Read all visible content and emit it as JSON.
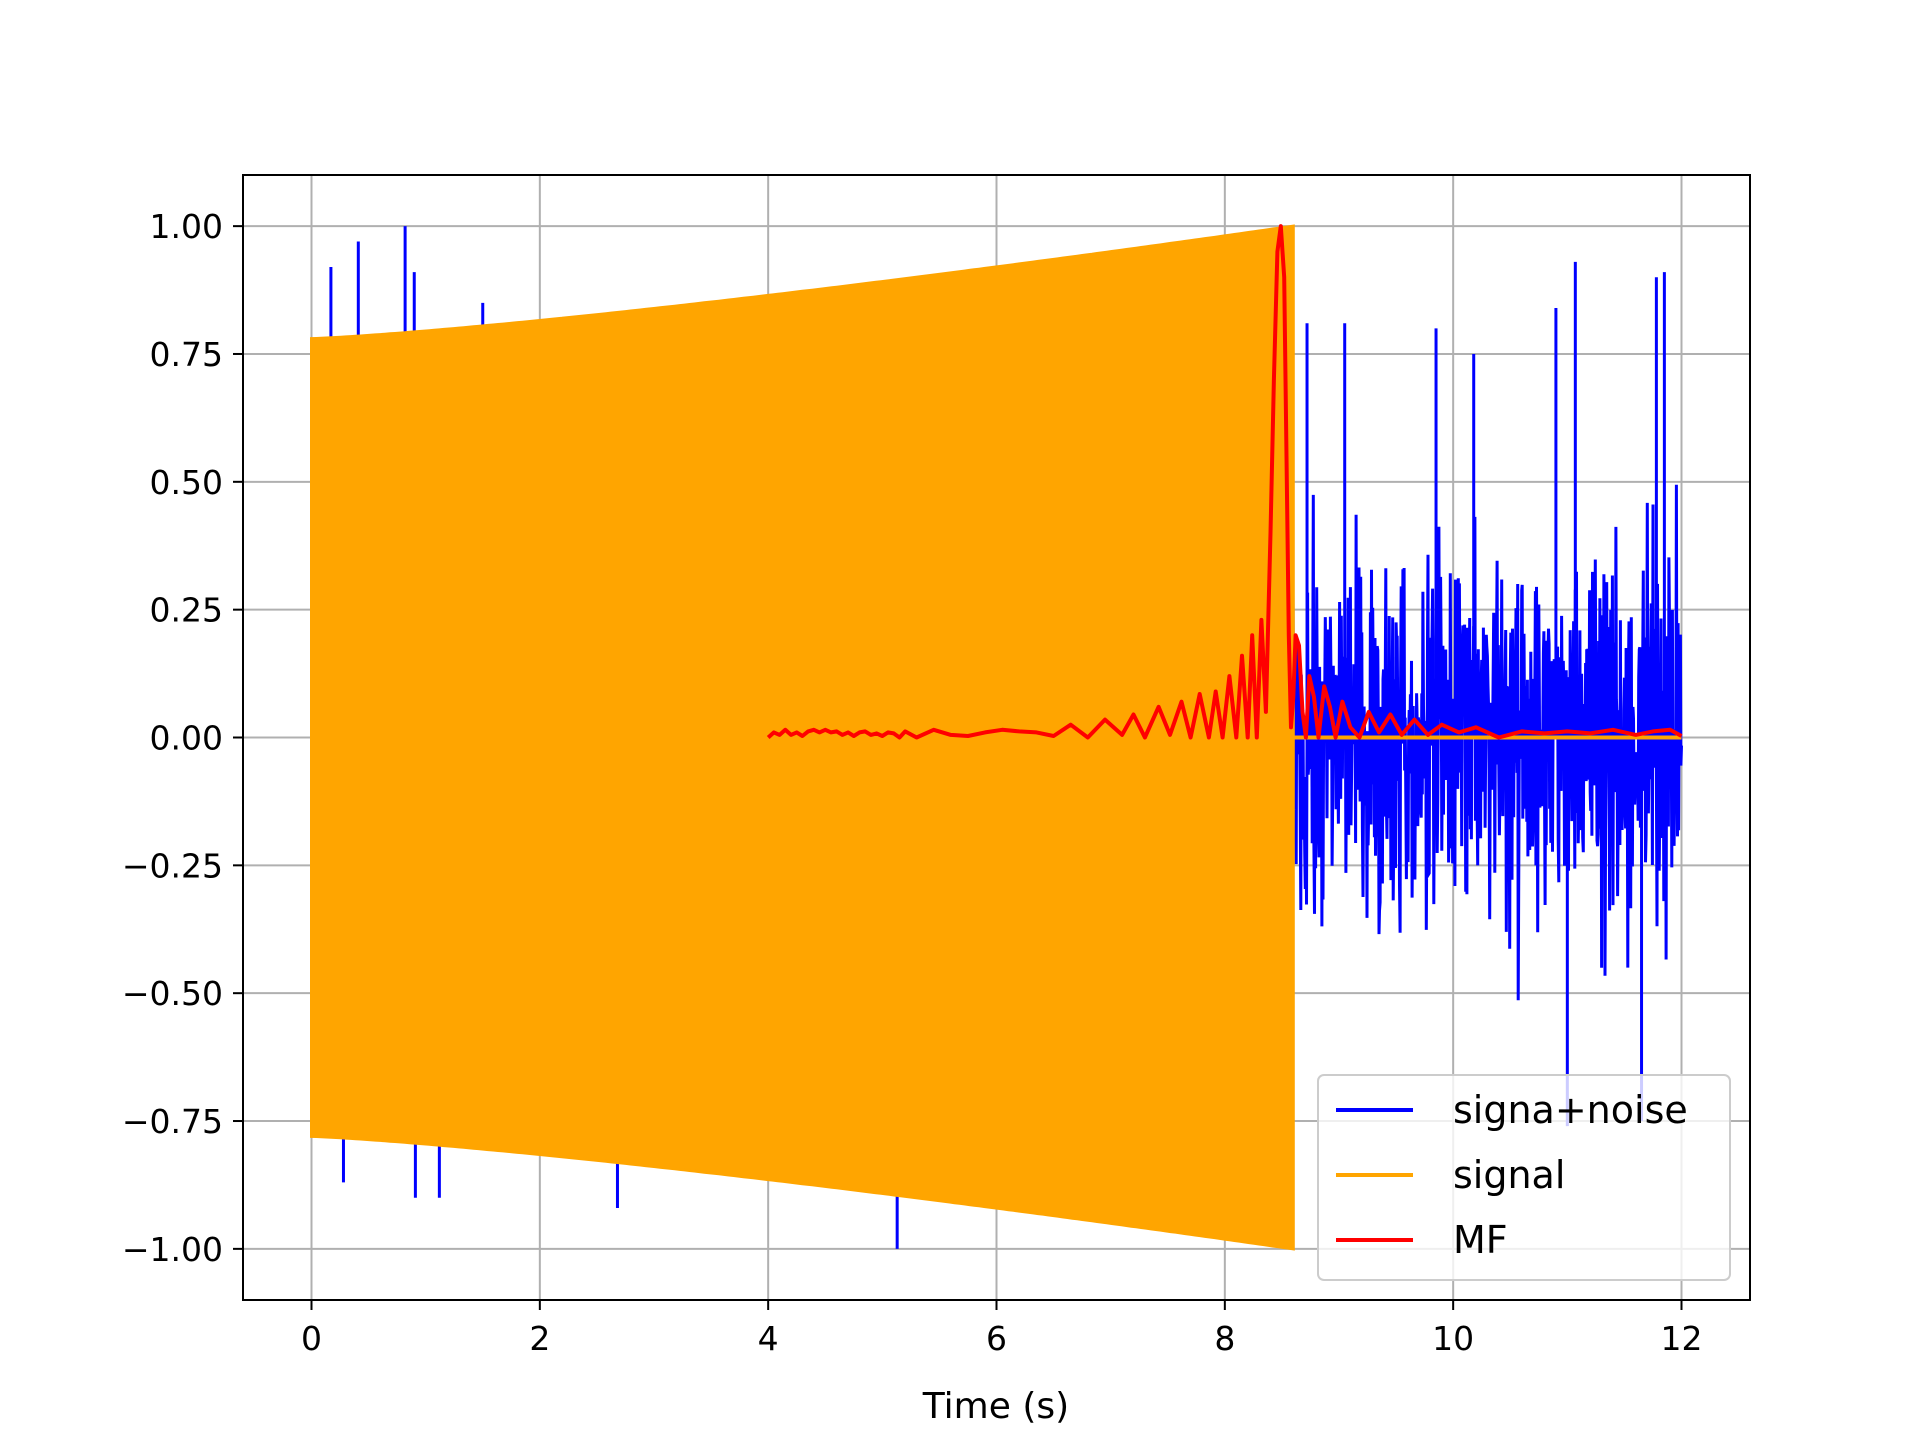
{
  "chart_data": {
    "type": "line",
    "title": "",
    "xlabel": "Time (s)",
    "ylabel": "",
    "xlim": [
      -0.6,
      12.6
    ],
    "ylim": [
      -1.1,
      1.1
    ],
    "xticks": [
      0,
      2,
      4,
      6,
      8,
      10,
      12
    ],
    "yticks": [
      -1.0,
      -0.75,
      -0.5,
      -0.25,
      0.0,
      0.25,
      0.5,
      0.75,
      1.0
    ],
    "xtick_labels": [
      "0",
      "2",
      "4",
      "6",
      "8",
      "10",
      "12"
    ],
    "ytick_labels": [
      "−1.00",
      "−0.75",
      "−0.50",
      "−0.25",
      "0.00",
      "0.25",
      "0.50",
      "0.75",
      "1.00"
    ],
    "grid": true,
    "legend": {
      "placement": "lower-right"
    },
    "series": [
      {
        "name": "signa+noise",
        "color": "#0000ff",
        "description_kind": "noise",
        "x_range": [
          0,
          12
        ],
        "amplitude": 0.6,
        "spikes": [
          [
            0.17,
            0.92
          ],
          [
            0.41,
            0.97
          ],
          [
            0.82,
            1.0
          ],
          [
            0.9,
            0.91
          ],
          [
            1.5,
            0.85
          ],
          [
            0.28,
            -0.87
          ],
          [
            0.91,
            -0.9
          ],
          [
            1.12,
            -0.9
          ],
          [
            2.68,
            -0.92
          ],
          [
            5.13,
            -1.0
          ],
          [
            8.72,
            0.81
          ],
          [
            9.05,
            0.81
          ],
          [
            9.85,
            0.8
          ],
          [
            10.9,
            0.84
          ],
          [
            11.07,
            0.93
          ],
          [
            11.85,
            0.91
          ],
          [
            11.78,
            0.9
          ],
          [
            10.18,
            0.75
          ],
          [
            11.0,
            -0.76
          ],
          [
            11.65,
            -0.75
          ]
        ]
      },
      {
        "name": "signal",
        "color": "#ffa500",
        "description_kind": "chirp-envelope",
        "x_start": 0,
        "x_end": 8.6,
        "envelope_start": 0.78,
        "envelope_end": 1.0,
        "zero_after_end": true,
        "zero_until": 12
      },
      {
        "name": "MF",
        "color": "#ff0000",
        "x": [
          4.0,
          4.05,
          4.1,
          4.15,
          4.2,
          4.25,
          4.3,
          4.35,
          4.4,
          4.45,
          4.5,
          4.55,
          4.6,
          4.65,
          4.7,
          4.75,
          4.8,
          4.85,
          4.9,
          4.95,
          5.0,
          5.05,
          5.1,
          5.15,
          5.2,
          5.3,
          5.45,
          5.6,
          5.75,
          5.9,
          6.05,
          6.2,
          6.35,
          6.5,
          6.65,
          6.8,
          6.95,
          7.1,
          7.2,
          7.3,
          7.42,
          7.52,
          7.62,
          7.7,
          7.78,
          7.86,
          7.92,
          7.98,
          8.04,
          8.1,
          8.15,
          8.2,
          8.24,
          8.28,
          8.32,
          8.36,
          8.4,
          8.43,
          8.46,
          8.49,
          8.52,
          8.54,
          8.56,
          8.58,
          8.6,
          8.62,
          8.65,
          8.68,
          8.71,
          8.74,
          8.78,
          8.82,
          8.87,
          8.92,
          8.97,
          9.03,
          9.1,
          9.18,
          9.26,
          9.35,
          9.45,
          9.55,
          9.66,
          9.78,
          9.9,
          10.05,
          10.2,
          10.4,
          10.6,
          10.8,
          11.0,
          11.2,
          11.4,
          11.6,
          11.75,
          11.9,
          12.0
        ],
        "y": [
          0.0,
          0.01,
          0.005,
          0.015,
          0.005,
          0.01,
          0.003,
          0.012,
          0.015,
          0.01,
          0.015,
          0.01,
          0.012,
          0.005,
          0.01,
          0.003,
          0.01,
          0.012,
          0.005,
          0.008,
          0.003,
          0.01,
          0.008,
          0.0,
          0.012,
          0.0,
          0.015,
          0.005,
          0.003,
          0.01,
          0.015,
          0.012,
          0.01,
          0.003,
          0.025,
          0.0,
          0.035,
          0.005,
          0.045,
          0.0,
          0.06,
          0.005,
          0.07,
          0.0,
          0.085,
          0.0,
          0.09,
          0.0,
          0.12,
          0.0,
          0.16,
          0.0,
          0.2,
          0.0,
          0.23,
          0.05,
          0.4,
          0.7,
          0.95,
          1.0,
          0.9,
          0.55,
          0.2,
          0.02,
          0.08,
          0.2,
          0.18,
          0.05,
          0.0,
          0.12,
          0.08,
          0.0,
          0.1,
          0.06,
          0.0,
          0.07,
          0.02,
          0.0,
          0.05,
          0.01,
          0.045,
          0.005,
          0.035,
          0.005,
          0.025,
          0.01,
          0.02,
          0.0,
          0.012,
          0.008,
          0.012,
          0.008,
          0.015,
          0.005,
          0.012,
          0.015,
          0.003
        ]
      }
    ]
  }
}
